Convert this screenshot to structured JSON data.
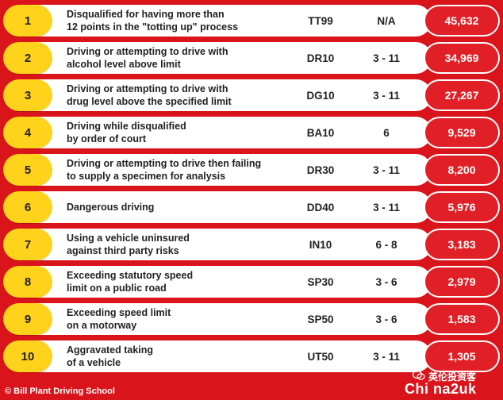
{
  "rows": [
    {
      "rank": "1",
      "description": "Disqualified for having more than\n12 points in the \"totting up\" process",
      "code": "TT99",
      "points": "N/A",
      "count": "45,632"
    },
    {
      "rank": "2",
      "description": "Driving or attempting to drive with\nalcohol level above limit",
      "code": "DR10",
      "points": "3 - 11",
      "count": "34,969"
    },
    {
      "rank": "3",
      "description": "Driving or attempting to drive with\ndrug level above the specified limit",
      "code": "DG10",
      "points": "3 - 11",
      "count": "27,267"
    },
    {
      "rank": "4",
      "description": "Driving while disqualified\nby order of court",
      "code": "BA10",
      "points": "6",
      "count": "9,529"
    },
    {
      "rank": "5",
      "description": "Driving or attempting to drive then failing\nto supply a specimen for analysis",
      "code": "DR30",
      "points": "3 - 11",
      "count": "8,200"
    },
    {
      "rank": "6",
      "description": "Dangerous driving",
      "code": "DD40",
      "points": "3 - 11",
      "count": "5,976"
    },
    {
      "rank": "7",
      "description": "Using a vehicle uninsured\nagainst third party risks",
      "code": "IN10",
      "points": "6 - 8",
      "count": "3,183"
    },
    {
      "rank": "8",
      "description": "Exceeding statutory speed\nlimit on a public road",
      "code": "SP30",
      "points": "3 - 6",
      "count": "2,979"
    },
    {
      "rank": "9",
      "description": "Exceeding speed limit\non a motorway",
      "code": "SP50",
      "points": "3 - 6",
      "count": "1,583"
    },
    {
      "rank": "10",
      "description": "Aggravated taking\nof a vehicle",
      "code": "UT50",
      "points": "3 - 11",
      "count": "1,305"
    }
  ],
  "footer": {
    "credit": "© Bill Plant Driving School"
  },
  "watermark": {
    "top": "英伦投资客",
    "main": "Chi na2uk",
    "icon": "wechat-icon"
  },
  "colors": {
    "background": "#d9141b",
    "rank_pill": "#ffd21c",
    "count_pill": "#e01f26",
    "bar": "#ffffff"
  }
}
